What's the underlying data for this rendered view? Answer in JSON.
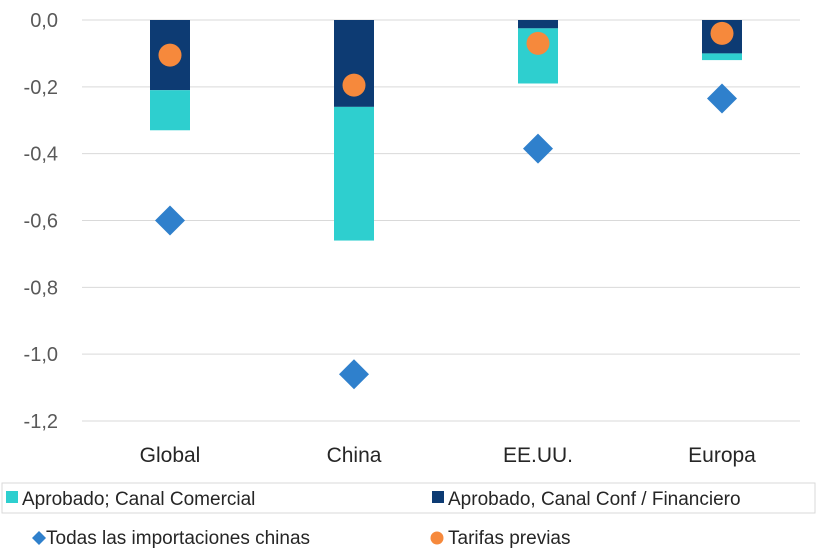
{
  "chart_data": {
    "type": "bar",
    "subtype": "stacked-bar-with-markers",
    "categories": [
      "Global",
      "China",
      "EE.UU.",
      "Europa"
    ],
    "ylim": [
      -1.2,
      0.0
    ],
    "yticks": [
      0.0,
      -0.2,
      -0.4,
      -0.6,
      -0.8,
      -1.0,
      -1.2
    ],
    "ytick_labels": [
      "0,0",
      "-0,2",
      "-0,4",
      "-0,6",
      "-0,8",
      "-1,0",
      "-1,2"
    ],
    "grid": true,
    "legend_position": "bottom",
    "series": [
      {
        "name": "Aprobado, Canal Conf / Financiero",
        "kind": "bar",
        "color": "#0d3b73",
        "values": [
          -0.21,
          -0.26,
          -0.025,
          -0.1
        ]
      },
      {
        "name": "Aprobado; Canal Comercial",
        "kind": "bar",
        "color": "#2ecfcf",
        "values": [
          -0.12,
          -0.4,
          -0.165,
          -0.02
        ]
      },
      {
        "name": "Todas las importaciones chinas",
        "kind": "marker",
        "marker": "diamond",
        "color": "#2f80cc",
        "values": [
          -0.6,
          -1.06,
          -0.385,
          -0.235
        ]
      },
      {
        "name": "Tarifas previas",
        "kind": "marker",
        "marker": "circle",
        "color": "#f6893c",
        "values": [
          -0.105,
          -0.195,
          -0.07,
          -0.04
        ]
      }
    ],
    "legend": {
      "row1": [
        "Aprobado; Canal Comercial",
        "Aprobado, Canal Conf / Financiero"
      ],
      "row2": [
        "Todas las importaciones chinas",
        "Tarifas previas"
      ]
    }
  }
}
